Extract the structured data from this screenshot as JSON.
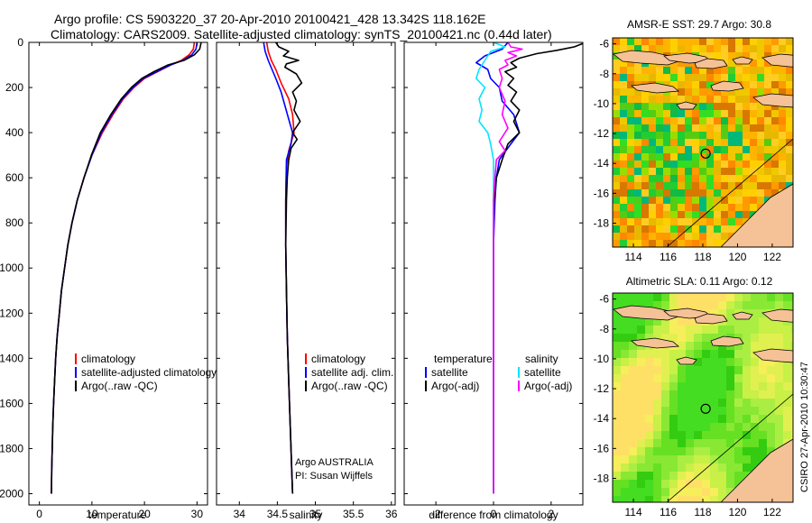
{
  "header": {
    "title_line1": "Argo profile: CS 5903220_37 20-Apr-2010 20100421_428 13.342S 118.162E",
    "title_line2": "Climatology: CARS2009. Satellite-adjusted climatology: synTS_20100421.nc (0.44d later)"
  },
  "footer": {
    "stamp": "CSIRO 27-Apr-2010 10:30:47"
  },
  "colors": {
    "climatology": "#ff0000",
    "satellite": "#0000ff",
    "argo": "#000000",
    "cyan": "#00e5ff",
    "magenta": "#ff00ff"
  },
  "chart_data": [
    {
      "type": "line",
      "id": "temperature",
      "xlabel": "temperature",
      "xlim": [
        -2,
        32
      ],
      "ylim": [
        2050,
        0
      ],
      "x_ticks": [
        0,
        10,
        20,
        30
      ],
      "y_ticks": [
        0,
        200,
        400,
        600,
        800,
        1000,
        1200,
        1400,
        1600,
        1800,
        2000
      ],
      "legend": [
        "climatology",
        "satellite-adjusted climatology",
        "Argo(..raw -QC)"
      ],
      "series": [
        {
          "name": "climatology",
          "color": "#ff0000",
          "points": [
            [
              29.5,
              0
            ],
            [
              29.3,
              30
            ],
            [
              28.5,
              55
            ],
            [
              27,
              80
            ],
            [
              25,
              100
            ],
            [
              22.5,
              130
            ],
            [
              20,
              160
            ],
            [
              18,
              200
            ],
            [
              16,
              250
            ],
            [
              14,
              320
            ],
            [
              12,
              400
            ],
            [
              10,
              500
            ],
            [
              8.5,
              600
            ],
            [
              7.2,
              700
            ],
            [
              6.2,
              800
            ],
            [
              5.4,
              900
            ],
            [
              4.8,
              1000
            ],
            [
              4.2,
              1100
            ],
            [
              3.8,
              1200
            ],
            [
              3.4,
              1300
            ],
            [
              3.1,
              1400
            ],
            [
              2.9,
              1500
            ],
            [
              2.7,
              1600
            ],
            [
              2.55,
              1700
            ],
            [
              2.45,
              1800
            ],
            [
              2.35,
              1900
            ],
            [
              2.3,
              2000
            ]
          ]
        },
        {
          "name": "satellite-adjusted climatology",
          "color": "#0000ff",
          "points": [
            [
              30,
              0
            ],
            [
              29.8,
              30
            ],
            [
              29,
              55
            ],
            [
              27.3,
              80
            ],
            [
              25,
              100
            ],
            [
              22.3,
              130
            ],
            [
              19.8,
              160
            ],
            [
              17.8,
              200
            ],
            [
              15.8,
              250
            ],
            [
              13.8,
              320
            ],
            [
              11.8,
              400
            ],
            [
              10,
              500
            ],
            [
              8.5,
              600
            ],
            [
              7.2,
              700
            ],
            [
              6.2,
              800
            ],
            [
              5.4,
              900
            ],
            [
              4.8,
              1000
            ],
            [
              4.2,
              1100
            ],
            [
              3.8,
              1200
            ],
            [
              3.4,
              1300
            ],
            [
              3.1,
              1400
            ],
            [
              2.9,
              1500
            ],
            [
              2.7,
              1600
            ],
            [
              2.55,
              1700
            ],
            [
              2.45,
              1800
            ],
            [
              2.35,
              1900
            ],
            [
              2.3,
              2000
            ]
          ]
        },
        {
          "name": "Argo(..raw -QC)",
          "color": "#000000",
          "points": [
            [
              30.8,
              0
            ],
            [
              30.5,
              30
            ],
            [
              29.5,
              55
            ],
            [
              27.5,
              80
            ],
            [
              24.5,
              100
            ],
            [
              21.8,
              130
            ],
            [
              19.5,
              160
            ],
            [
              17.5,
              200
            ],
            [
              15.6,
              250
            ],
            [
              13.6,
              320
            ],
            [
              11.6,
              400
            ],
            [
              9.9,
              500
            ],
            [
              8.5,
              600
            ],
            [
              7.2,
              700
            ],
            [
              6.2,
              800
            ],
            [
              5.4,
              900
            ],
            [
              4.8,
              1000
            ],
            [
              4.2,
              1100
            ],
            [
              3.8,
              1200
            ],
            [
              3.4,
              1300
            ],
            [
              3.1,
              1400
            ],
            [
              2.9,
              1500
            ],
            [
              2.7,
              1600
            ],
            [
              2.55,
              1700
            ],
            [
              2.45,
              1800
            ],
            [
              2.35,
              1900
            ],
            [
              2.3,
              2000
            ]
          ]
        }
      ]
    },
    {
      "type": "line",
      "id": "salinity",
      "xlabel": "salinity",
      "xlim": [
        33.7,
        36.05
      ],
      "ylim": [
        2050,
        0
      ],
      "x_ticks": [
        34,
        34.5,
        35,
        35.5,
        36
      ],
      "legend": [
        "climatology",
        "satellite adj. clim.",
        "Argo(..raw -QC)"
      ],
      "annotation_line1": "Argo AUSTRALIA",
      "annotation_line2": "PI: Susan Wijffels",
      "series": [
        {
          "name": "climatology",
          "color": "#ff0000",
          "points": [
            [
              34.36,
              0
            ],
            [
              34.38,
              40
            ],
            [
              34.42,
              80
            ],
            [
              34.48,
              120
            ],
            [
              34.55,
              180
            ],
            [
              34.65,
              250
            ],
            [
              34.7,
              320
            ],
            [
              34.72,
              400
            ],
            [
              34.65,
              480
            ],
            [
              34.62,
              550
            ],
            [
              34.61,
              700
            ],
            [
              34.61,
              900
            ],
            [
              34.62,
              1100
            ],
            [
              34.63,
              1300
            ],
            [
              34.65,
              1500
            ],
            [
              34.67,
              1700
            ],
            [
              34.69,
              1900
            ],
            [
              34.7,
              2000
            ]
          ]
        },
        {
          "name": "satellite adj. clim.",
          "color": "#0000ff",
          "points": [
            [
              34.32,
              0
            ],
            [
              34.34,
              40
            ],
            [
              34.38,
              80
            ],
            [
              34.43,
              120
            ],
            [
              34.48,
              160
            ],
            [
              34.55,
              220
            ],
            [
              34.6,
              280
            ],
            [
              34.65,
              340
            ],
            [
              34.7,
              400
            ],
            [
              34.68,
              450
            ],
            [
              34.62,
              520
            ],
            [
              34.61,
              700
            ],
            [
              34.61,
              900
            ],
            [
              34.62,
              1100
            ],
            [
              34.63,
              1300
            ],
            [
              34.65,
              1500
            ],
            [
              34.67,
              1700
            ],
            [
              34.69,
              1900
            ],
            [
              34.7,
              2000
            ]
          ]
        },
        {
          "name": "Argo(..raw -QC)",
          "color": "#000000",
          "points": [
            [
              34.48,
              0
            ],
            [
              34.52,
              20
            ],
            [
              34.65,
              40
            ],
            [
              34.58,
              60
            ],
            [
              34.78,
              80
            ],
            [
              34.62,
              95
            ],
            [
              34.6,
              110
            ],
            [
              34.75,
              140
            ],
            [
              34.82,
              180
            ],
            [
              34.7,
              220
            ],
            [
              34.75,
              260
            ],
            [
              34.72,
              300
            ],
            [
              34.8,
              350
            ],
            [
              34.7,
              400
            ],
            [
              34.76,
              430
            ],
            [
              34.68,
              470
            ],
            [
              34.65,
              520
            ],
            [
              34.63,
              600
            ],
            [
              34.62,
              700
            ],
            [
              34.61,
              900
            ],
            [
              34.62,
              1100
            ],
            [
              34.63,
              1300
            ],
            [
              34.65,
              1500
            ],
            [
              34.67,
              1700
            ],
            [
              34.69,
              1900
            ],
            [
              34.7,
              2000
            ]
          ]
        }
      ]
    },
    {
      "type": "line",
      "id": "difference",
      "xlabel": "difference from climatology",
      "xlim": [
        -3.1,
        3.1
      ],
      "ylim": [
        2050,
        0
      ],
      "x_ticks": [
        -2,
        0,
        2
      ],
      "legend_header_left": "temperature",
      "legend_header_right": "salinity",
      "legend": [
        "satellite",
        "Argo(-adj)",
        "satellite",
        "Argo(-adj)"
      ],
      "series": [
        {
          "name": "temperature satellite",
          "color": "#0000ff",
          "points": [
            [
              0.5,
              0
            ],
            [
              0.3,
              30
            ],
            [
              -0.3,
              60
            ],
            [
              -0.6,
              90
            ],
            [
              -0.2,
              120
            ],
            [
              -0.1,
              160
            ],
            [
              0.2,
              200
            ],
            [
              0.3,
              260
            ],
            [
              0.7,
              320
            ],
            [
              0.9,
              400
            ],
            [
              0.6,
              450
            ],
            [
              0.2,
              520
            ],
            [
              0.1,
              600
            ],
            [
              0.05,
              700
            ],
            [
              0,
              900
            ],
            [
              0,
              2000
            ]
          ]
        },
        {
          "name": "temperature Argo(-adj)",
          "color": "#000000",
          "points": [
            [
              3.2,
              0
            ],
            [
              2.8,
              20
            ],
            [
              2.2,
              35
            ],
            [
              1.5,
              50
            ],
            [
              0.9,
              70
            ],
            [
              0.6,
              90
            ],
            [
              0.8,
              110
            ],
            [
              0.4,
              130
            ],
            [
              0.7,
              160
            ],
            [
              0.5,
              190
            ],
            [
              0.8,
              220
            ],
            [
              0.6,
              260
            ],
            [
              0.9,
              300
            ],
            [
              0.7,
              350
            ],
            [
              0.9,
              400
            ],
            [
              0.5,
              450
            ],
            [
              0.3,
              520
            ],
            [
              0.1,
              600
            ],
            [
              0.02,
              700
            ],
            [
              0,
              850
            ],
            [
              0,
              2000
            ]
          ]
        },
        {
          "name": "salinity satellite",
          "color": "#00e5ff",
          "points": [
            [
              0,
              0
            ],
            [
              0.4,
              20
            ],
            [
              -0.1,
              40
            ],
            [
              -0.3,
              80
            ],
            [
              -0.5,
              120
            ],
            [
              -0.6,
              160
            ],
            [
              -0.3,
              200
            ],
            [
              -0.5,
              250
            ],
            [
              -0.4,
              300
            ],
            [
              -0.5,
              350
            ],
            [
              -0.2,
              400
            ],
            [
              -0.1,
              450
            ],
            [
              0,
              520
            ],
            [
              0,
              2000
            ]
          ]
        },
        {
          "name": "salinity Argo(-adj)",
          "color": "#ff00ff",
          "points": [
            [
              0.5,
              0
            ],
            [
              0.6,
              20
            ],
            [
              1.0,
              30
            ],
            [
              0.5,
              45
            ],
            [
              0.8,
              60
            ],
            [
              0.4,
              80
            ],
            [
              0.5,
              100
            ],
            [
              0.2,
              120
            ],
            [
              0.3,
              160
            ],
            [
              0.2,
              200
            ],
            [
              0.4,
              260
            ],
            [
              0.3,
              320
            ],
            [
              0.5,
              380
            ],
            [
              0.2,
              440
            ],
            [
              0.4,
              480
            ],
            [
              0.1,
              520
            ],
            [
              0.05,
              600
            ],
            [
              0,
              700
            ],
            [
              0,
              2000
            ]
          ]
        }
      ]
    },
    {
      "type": "heatmap",
      "id": "sst_map",
      "title": "AMSR-E SST: 29.7 Argo: 30.8",
      "x_ticks": [
        114,
        116,
        118,
        120,
        122
      ],
      "y_ticks": [
        -6,
        -8,
        -10,
        -12,
        -14,
        -16,
        -18
      ],
      "xlim": [
        112.8,
        123.2
      ],
      "ylim": [
        -19.6,
        -5.6
      ],
      "float_position": [
        118.162,
        -13.342
      ]
    },
    {
      "type": "heatmap",
      "id": "sla_map",
      "title": "Altimetric SLA: 0.11 Argo: 0.12",
      "x_ticks": [
        114,
        116,
        118,
        120,
        122
      ],
      "y_ticks": [
        -6,
        -8,
        -10,
        -12,
        -14,
        -16,
        -18
      ],
      "xlim": [
        112.8,
        123.2
      ],
      "ylim": [
        -19.6,
        -5.6
      ],
      "float_position": [
        118.162,
        -13.342
      ]
    }
  ]
}
